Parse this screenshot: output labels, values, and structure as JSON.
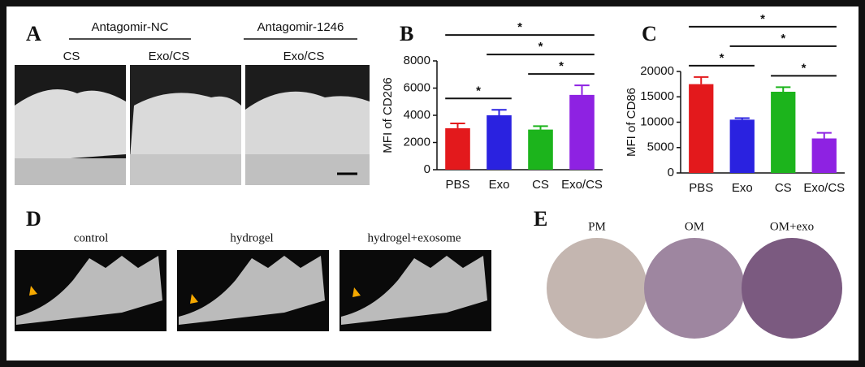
{
  "panels": {
    "A": {
      "letter": "A",
      "groups": [
        "Antagomir-NC",
        "Antagomir-1246"
      ],
      "labels": [
        "CS",
        "Exo/CS",
        "Exo/CS"
      ]
    },
    "D": {
      "letter": "D",
      "labels": [
        "control",
        "hydrogel",
        "hydrogel+exosome"
      ]
    },
    "E": {
      "letter": "E",
      "labels": [
        "PM",
        "OM",
        "OM+exo"
      ]
    }
  },
  "chart_data": [
    {
      "type": "bar",
      "panel": "B",
      "ylabel": "MFI of CD206",
      "categories": [
        "PBS",
        "Exo",
        "CS",
        "Exo/CS"
      ],
      "values": [
        3050,
        4000,
        2950,
        5500
      ],
      "errors": [
        350,
        400,
        250,
        700
      ],
      "colors": [
        "#e3191c",
        "#2a22e0",
        "#1cb41c",
        "#8e22e2"
      ],
      "ylim": [
        0,
        8000
      ],
      "yticks": [
        0,
        2000,
        4000,
        6000,
        8000
      ],
      "significance": [
        {
          "from": "PBS",
          "to": "Exo",
          "label": "*"
        },
        {
          "from": "CS",
          "to": "Exo/CS",
          "label": "*"
        },
        {
          "from": "Exo",
          "to": "Exo/CS",
          "label": "*"
        },
        {
          "from": "PBS",
          "to": "Exo/CS",
          "label": "*"
        }
      ]
    },
    {
      "type": "bar",
      "panel": "C",
      "ylabel": "MFI of CD86",
      "categories": [
        "PBS",
        "Exo",
        "CS",
        "Exo/CS"
      ],
      "values": [
        17500,
        10500,
        16000,
        6800
      ],
      "errors": [
        1400,
        300,
        900,
        1100
      ],
      "colors": [
        "#e3191c",
        "#2a22e0",
        "#1cb41c",
        "#8e22e2"
      ],
      "ylim": [
        0,
        20000
      ],
      "yticks": [
        0,
        5000,
        10000,
        15000,
        20000
      ],
      "significance": [
        {
          "from": "PBS",
          "to": "Exo",
          "label": "*"
        },
        {
          "from": "CS",
          "to": "Exo/CS",
          "label": "*"
        },
        {
          "from": "Exo",
          "to": "Exo/CS",
          "label": "*"
        },
        {
          "from": "PBS",
          "to": "Exo/CS",
          "label": "*"
        }
      ]
    }
  ]
}
